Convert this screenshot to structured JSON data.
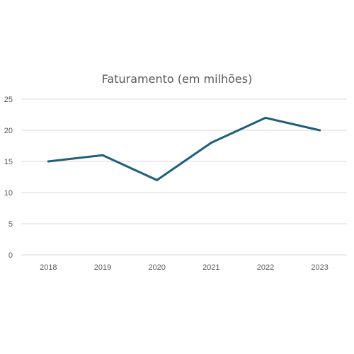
{
  "chart_data": {
    "type": "line",
    "title": "Faturamento (em milhões)",
    "xlabel": "",
    "ylabel": "",
    "categories": [
      "2018",
      "2019",
      "2020",
      "2021",
      "2022",
      "2023"
    ],
    "series": [
      {
        "values": [
          15,
          16,
          12,
          18,
          22,
          20
        ]
      }
    ],
    "ylim": [
      0,
      25
    ],
    "yticks": [
      0,
      5,
      10,
      15,
      20,
      25
    ],
    "grid": true,
    "legend": "none",
    "colors": {
      "line": "#1f5f7a",
      "grid": "#d9d9d9",
      "text": "#595959"
    }
  }
}
